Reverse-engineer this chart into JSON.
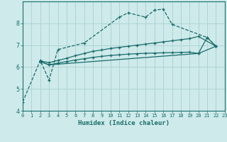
{
  "background_color": "#ceeaea",
  "grid_color": "#aed4d4",
  "line_color": "#1a6b6b",
  "x_min": 0,
  "x_max": 23,
  "y_min": 4,
  "y_max": 9,
  "xlabel": "Humidex (Indice chaleur)",
  "series1_x": [
    0,
    2,
    3,
    4,
    7,
    11,
    12,
    14,
    15,
    16,
    17,
    21,
    22
  ],
  "series1_y": [
    4.4,
    6.3,
    5.4,
    6.8,
    7.1,
    8.28,
    8.48,
    8.28,
    8.6,
    8.65,
    7.95,
    7.35,
    6.95
  ],
  "series2_x": [
    2,
    3,
    4,
    5,
    6,
    7,
    8,
    9,
    10,
    11,
    12,
    13,
    14,
    15,
    16,
    17,
    18,
    19,
    20,
    22
  ],
  "series2_y": [
    6.28,
    6.2,
    6.3,
    6.4,
    6.52,
    6.62,
    6.72,
    6.78,
    6.85,
    6.9,
    6.95,
    7.0,
    7.05,
    7.1,
    7.15,
    7.2,
    7.25,
    7.3,
    7.4,
    6.95
  ],
  "series3_x": [
    2,
    3,
    4,
    5,
    6,
    7,
    8,
    9,
    10,
    11,
    12,
    13,
    14,
    15,
    16,
    17,
    18,
    19,
    20,
    22
  ],
  "series3_y": [
    6.25,
    6.1,
    6.18,
    6.25,
    6.32,
    6.38,
    6.44,
    6.49,
    6.53,
    6.56,
    6.59,
    6.61,
    6.63,
    6.64,
    6.65,
    6.66,
    6.67,
    6.68,
    6.62,
    6.95
  ],
  "series4_x": [
    2,
    3,
    20,
    21,
    22
  ],
  "series4_y": [
    6.25,
    6.1,
    6.62,
    7.35,
    6.95
  ]
}
